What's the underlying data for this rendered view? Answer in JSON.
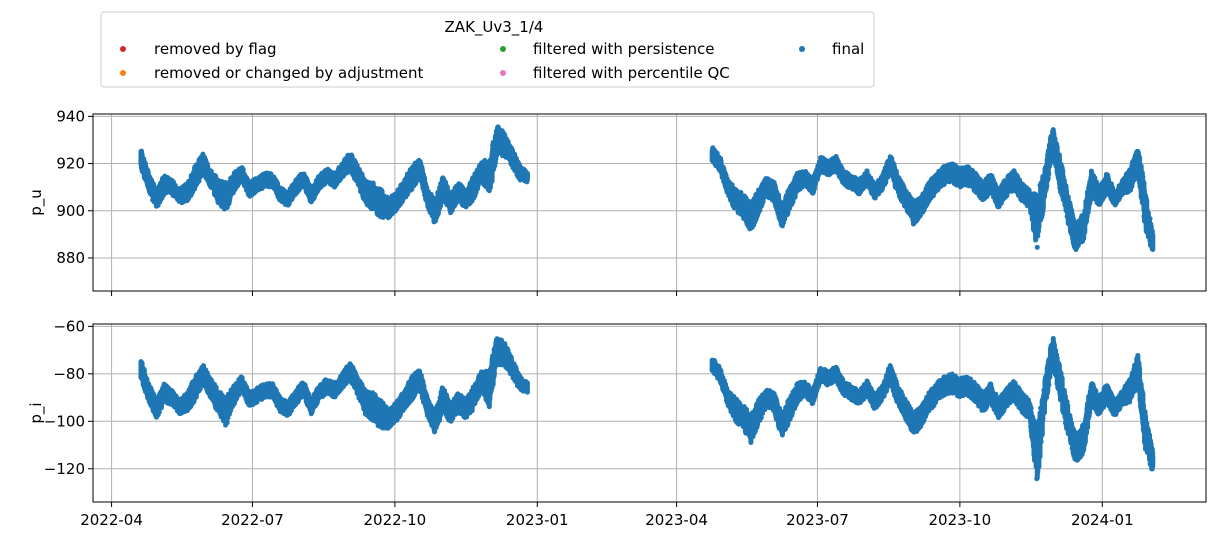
{
  "legend": {
    "title": "ZAK_Uv3_1/4",
    "entries": [
      {
        "label": "removed by flag",
        "color": "#d62728"
      },
      {
        "label": "filtered with persistence",
        "color": "#2ca02c"
      },
      {
        "label": "final",
        "color": "#1f77b4"
      },
      {
        "label": "removed or changed by adjustment",
        "color": "#ff7f0e"
      },
      {
        "label": "filtered with percentile QC",
        "color": "#e377c2"
      }
    ]
  },
  "chart_data": [
    {
      "type": "scatter",
      "ylabel": "p_u",
      "xlabel": "",
      "ylim": [
        866,
        941
      ],
      "yticks": [
        880,
        900,
        920,
        940
      ],
      "xlim": [
        "2022-03-20",
        "2024-03-08"
      ],
      "grid": true,
      "series": [
        {
          "name": "final",
          "color": "#1f77b4",
          "segments": [
            {
              "x": [
                "2022-04-20",
                "2022-04-25",
                "2022-04-30",
                "2022-05-05",
                "2022-05-10",
                "2022-05-15",
                "2022-05-20",
                "2022-05-25",
                "2022-05-30",
                "2022-06-04",
                "2022-06-09",
                "2022-06-14",
                "2022-06-19",
                "2022-06-24",
                "2022-06-29",
                "2022-07-04",
                "2022-07-09",
                "2022-07-14",
                "2022-07-19",
                "2022-07-24",
                "2022-07-29",
                "2022-08-03",
                "2022-08-08",
                "2022-08-13",
                "2022-08-18",
                "2022-08-23",
                "2022-08-28",
                "2022-09-02",
                "2022-09-07",
                "2022-09-12",
                "2022-09-17",
                "2022-09-22",
                "2022-09-27",
                "2022-10-02",
                "2022-10-07",
                "2022-10-12",
                "2022-10-17",
                "2022-10-22",
                "2022-10-27",
                "2022-11-01",
                "2022-11-06",
                "2022-11-11",
                "2022-11-16",
                "2022-11-21",
                "2022-11-26",
                "2022-12-01",
                "2022-12-06",
                "2022-12-11",
                "2022-12-16",
                "2022-12-21",
                "2022-12-26"
              ],
              "mean": [
                922,
                912,
                905,
                911,
                910,
                906,
                908,
                914,
                920,
                914,
                908,
                906,
                912,
                916,
                909,
                911,
                913,
                913,
                907,
                905,
                910,
                914,
                906,
                912,
                915,
                913,
                917,
                921,
                915,
                908,
                906,
                903,
                901,
                904,
                909,
                914,
                918,
                906,
                899,
                910,
                903,
                908,
                905,
                910,
                917,
                914,
                930,
                928,
                922,
                916,
                914
              ],
              "spread": [
                4,
                4,
                4,
                4,
                3,
                3,
                4,
                5,
                4,
                4,
                5,
                6,
                4,
                3,
                3,
                3,
                3,
                3,
                3,
                3,
                3,
                3,
                3,
                3,
                3,
                3,
                3,
                4,
                4,
                5,
                6,
                6,
                4,
                4,
                4,
                5,
                4,
                4,
                5,
                5,
                4,
                4,
                4,
                5,
                4,
                8,
                6,
                5,
                4,
                3,
                2
              ]
            },
            {
              "x": [
                "2023-04-24",
                "2023-04-29",
                "2023-05-04",
                "2023-05-09",
                "2023-05-14",
                "2023-05-19",
                "2023-05-24",
                "2023-05-29",
                "2023-06-03",
                "2023-06-08",
                "2023-06-13",
                "2023-06-18",
                "2023-06-23",
                "2023-06-28",
                "2023-07-03",
                "2023-07-08",
                "2023-07-13",
                "2023-07-18",
                "2023-07-23",
                "2023-07-28",
                "2023-08-02",
                "2023-08-07",
                "2023-08-12",
                "2023-08-17",
                "2023-08-22",
                "2023-08-27",
                "2023-09-01",
                "2023-09-06",
                "2023-09-11",
                "2023-09-16",
                "2023-09-21",
                "2023-09-26",
                "2023-10-01",
                "2023-10-06",
                "2023-10-11",
                "2023-10-16",
                "2023-10-21",
                "2023-10-26",
                "2023-10-31",
                "2023-11-05",
                "2023-11-10",
                "2023-11-15",
                "2023-11-20",
                "2023-11-25",
                "2023-11-30",
                "2023-12-05",
                "2023-12-10",
                "2023-12-15",
                "2023-12-20",
                "2023-12-25",
                "2023-12-30",
                "2024-01-04",
                "2024-01-09",
                "2024-01-14",
                "2024-01-19",
                "2024-01-24",
                "2024-01-29",
                "2024-02-03"
              ],
              "mean": [
                924,
                920,
                910,
                905,
                902,
                897,
                904,
                910,
                908,
                898,
                905,
                912,
                914,
                910,
                920,
                918,
                920,
                914,
                912,
                910,
                914,
                908,
                912,
                920,
                911,
                905,
                899,
                902,
                908,
                912,
                915,
                916,
                914,
                915,
                912,
                908,
                912,
                905,
                910,
                913,
                908,
                905,
                895,
                912,
                930,
                915,
                900,
                888,
                893,
                912,
                906,
                912,
                905,
                910,
                913,
                922,
                900,
                885
              ],
              "spread": [
                3,
                3,
                3,
                5,
                5,
                6,
                5,
                4,
                4,
                5,
                5,
                4,
                3,
                3,
                3,
                3,
                3,
                3,
                3,
                3,
                3,
                3,
                3,
                4,
                4,
                4,
                5,
                4,
                4,
                4,
                4,
                4,
                4,
                4,
                4,
                4,
                4,
                4,
                4,
                4,
                4,
                4,
                12,
                6,
                6,
                7,
                6,
                6,
                6,
                5,
                4,
                4,
                3,
                3,
                5,
                6,
                8,
                4
              ]
            }
          ]
        }
      ]
    },
    {
      "type": "scatter",
      "ylabel": "p_i",
      "xlabel": "",
      "ylim": [
        -134,
        -59
      ],
      "yticks": [
        -60,
        -80,
        -100,
        -120
      ],
      "xlim": [
        "2022-03-20",
        "2024-03-08"
      ],
      "xticks": [
        "2022-04",
        "2022-07",
        "2022-10",
        "2023-01",
        "2023-04",
        "2023-07",
        "2023-10",
        "2024-01"
      ],
      "grid": true,
      "series": [
        {
          "name": "final",
          "color": "#1f77b4",
          "segments": [
            {
              "x": [
                "2022-04-20",
                "2022-04-25",
                "2022-04-30",
                "2022-05-05",
                "2022-05-10",
                "2022-05-15",
                "2022-05-20",
                "2022-05-25",
                "2022-05-30",
                "2022-06-04",
                "2022-06-09",
                "2022-06-14",
                "2022-06-19",
                "2022-06-24",
                "2022-06-29",
                "2022-07-04",
                "2022-07-09",
                "2022-07-14",
                "2022-07-19",
                "2022-07-24",
                "2022-07-29",
                "2022-08-03",
                "2022-08-08",
                "2022-08-13",
                "2022-08-18",
                "2022-08-23",
                "2022-08-28",
                "2022-09-02",
                "2022-09-07",
                "2022-09-12",
                "2022-09-17",
                "2022-09-22",
                "2022-09-27",
                "2022-10-02",
                "2022-10-07",
                "2022-10-12",
                "2022-10-17",
                "2022-10-22",
                "2022-10-27",
                "2022-11-01",
                "2022-11-06",
                "2022-11-11",
                "2022-11-16",
                "2022-11-21",
                "2022-11-26",
                "2022-12-01",
                "2022-12-06",
                "2022-12-11",
                "2022-12-16",
                "2022-12-21",
                "2022-12-26"
              ],
              "mean": [
                -78,
                -88,
                -95,
                -88,
                -90,
                -94,
                -92,
                -86,
                -80,
                -86,
                -92,
                -96,
                -89,
                -84,
                -91,
                -89,
                -87,
                -87,
                -93,
                -95,
                -90,
                -86,
                -94,
                -88,
                -85,
                -87,
                -83,
                -79,
                -85,
                -92,
                -94,
                -97,
                -99,
                -96,
                -91,
                -86,
                -82,
                -94,
                -101,
                -90,
                -97,
                -92,
                -95,
                -90,
                -83,
                -86,
                -70,
                -72,
                -78,
                -84,
                -86
              ],
              "spread": [
                4,
                4,
                4,
                4,
                3,
                3,
                4,
                5,
                4,
                4,
                5,
                6,
                4,
                3,
                3,
                3,
                3,
                3,
                3,
                3,
                3,
                3,
                3,
                3,
                3,
                3,
                3,
                4,
                4,
                5,
                6,
                6,
                4,
                4,
                4,
                5,
                4,
                4,
                5,
                5,
                4,
                4,
                4,
                5,
                4,
                8,
                6,
                5,
                4,
                3,
                2
              ]
            },
            {
              "x": [
                "2023-04-24",
                "2023-04-29",
                "2023-05-04",
                "2023-05-09",
                "2023-05-14",
                "2023-05-19",
                "2023-05-24",
                "2023-05-29",
                "2023-06-03",
                "2023-06-08",
                "2023-06-13",
                "2023-06-18",
                "2023-06-23",
                "2023-06-28",
                "2023-07-03",
                "2023-07-08",
                "2023-07-13",
                "2023-07-18",
                "2023-07-23",
                "2023-07-28",
                "2023-08-02",
                "2023-08-07",
                "2023-08-12",
                "2023-08-17",
                "2023-08-22",
                "2023-08-27",
                "2023-09-01",
                "2023-09-06",
                "2023-09-11",
                "2023-09-16",
                "2023-09-21",
                "2023-09-26",
                "2023-10-01",
                "2023-10-06",
                "2023-10-11",
                "2023-10-16",
                "2023-10-21",
                "2023-10-26",
                "2023-10-31",
                "2023-11-05",
                "2023-11-10",
                "2023-11-15",
                "2023-11-20",
                "2023-11-25",
                "2023-11-30",
                "2023-12-05",
                "2023-12-10",
                "2023-12-15",
                "2023-12-20",
                "2023-12-25",
                "2023-12-30",
                "2024-01-04",
                "2024-01-09",
                "2024-01-14",
                "2024-01-19",
                "2024-01-24",
                "2024-01-29",
                "2024-02-03"
              ],
              "mean": [
                -76,
                -80,
                -90,
                -95,
                -98,
                -103,
                -96,
                -90,
                -92,
                -102,
                -95,
                -88,
                -86,
                -90,
                -80,
                -82,
                -80,
                -86,
                -88,
                -90,
                -86,
                -92,
                -88,
                -80,
                -89,
                -95,
                -101,
                -98,
                -92,
                -88,
                -85,
                -84,
                -86,
                -85,
                -88,
                -92,
                -88,
                -95,
                -90,
                -87,
                -92,
                -95,
                -115,
                -88,
                -70,
                -85,
                -100,
                -112,
                -107,
                -88,
                -94,
                -88,
                -95,
                -90,
                -87,
                -78,
                -105,
                -118
              ],
              "spread": [
                3,
                3,
                3,
                5,
                5,
                6,
                5,
                4,
                4,
                5,
                5,
                4,
                3,
                3,
                3,
                3,
                3,
                3,
                3,
                3,
                3,
                3,
                3,
                4,
                4,
                4,
                5,
                4,
                4,
                4,
                4,
                4,
                4,
                4,
                4,
                4,
                4,
                4,
                4,
                4,
                4,
                4,
                12,
                6,
                6,
                7,
                6,
                6,
                6,
                5,
                4,
                4,
                3,
                3,
                5,
                6,
                8,
                4
              ]
            }
          ]
        }
      ]
    }
  ]
}
